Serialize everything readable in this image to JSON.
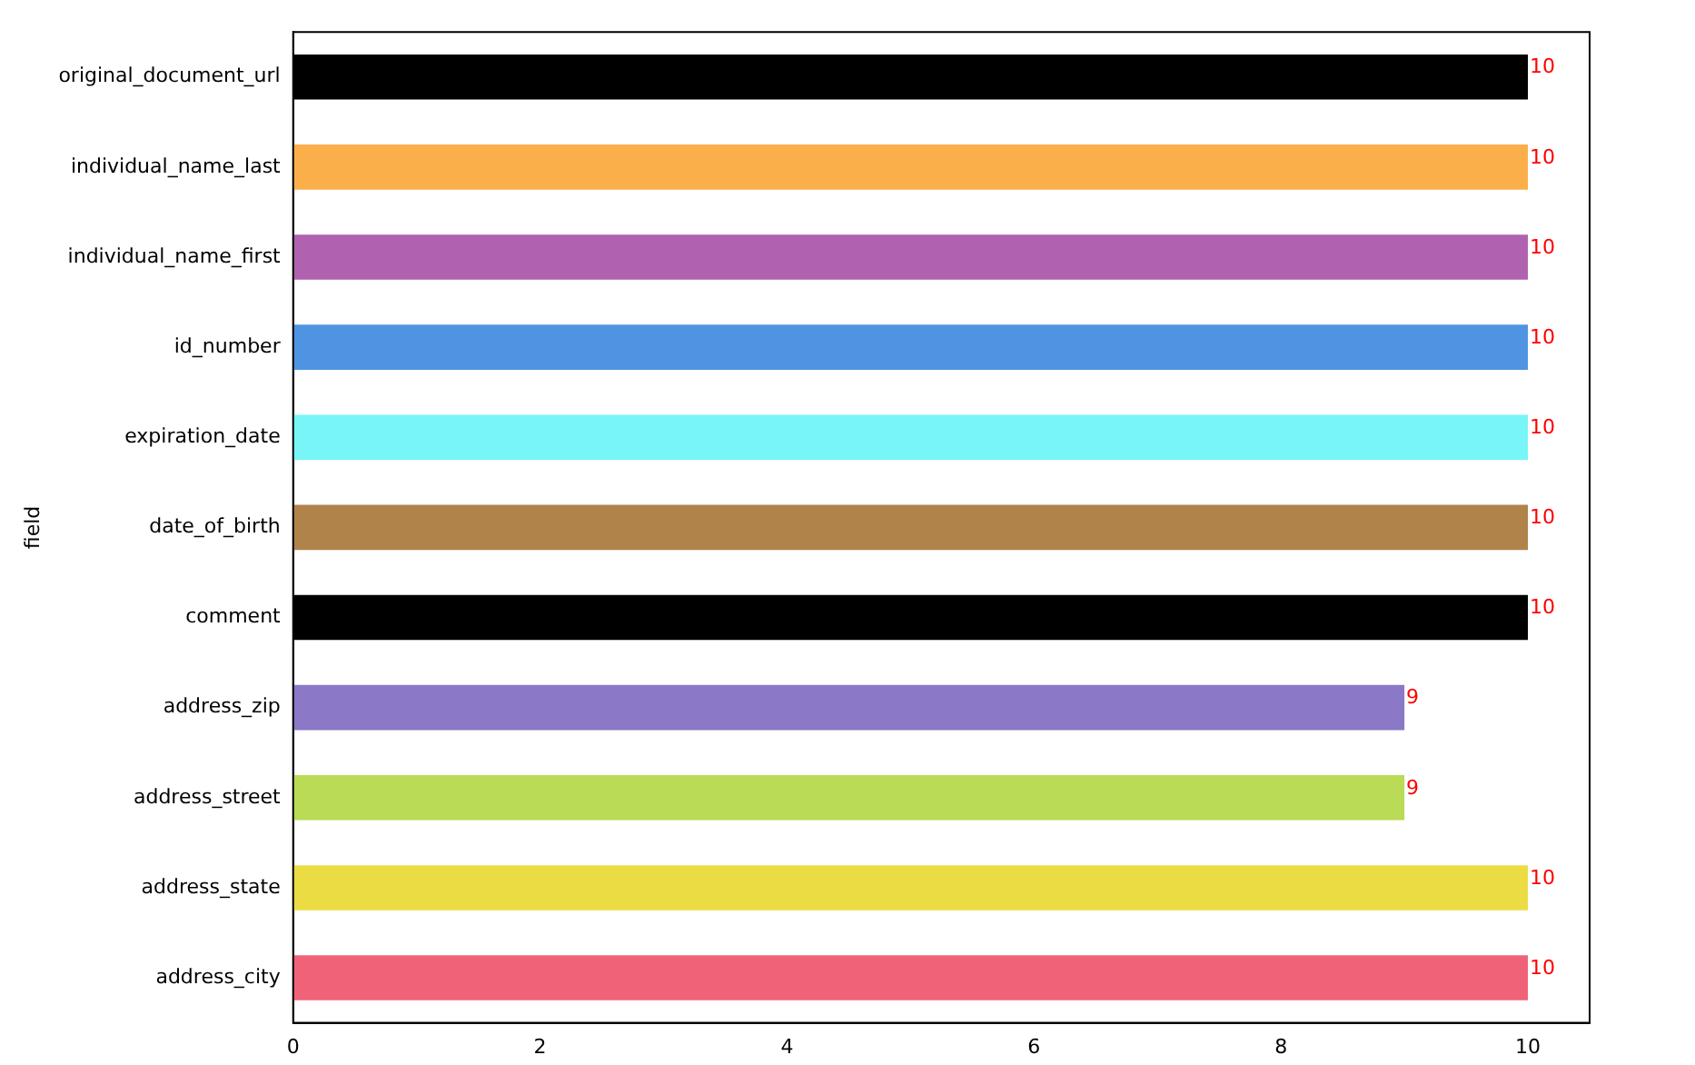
{
  "chart_data": {
    "type": "bar",
    "orientation": "horizontal",
    "ylabel": "field",
    "categories": [
      "original_document_url",
      "individual_name_last",
      "individual_name_first",
      "id_number",
      "expiration_date",
      "date_of_birth",
      "comment",
      "address_zip",
      "address_street",
      "address_state",
      "address_city"
    ],
    "values": [
      10,
      10,
      10,
      10,
      10,
      10,
      10,
      9,
      9,
      10,
      10
    ],
    "colors": [
      "#000000",
      "#faaf4b",
      "#b062b0",
      "#4f94e2",
      "#78f5f7",
      "#b0834a",
      "#000000",
      "#8b78c6",
      "#b9db55",
      "#ecdc44",
      "#f06278"
    ],
    "xlim": [
      0,
      10.5
    ],
    "xticks": [
      0,
      2,
      4,
      6,
      8,
      10
    ],
    "data_labels": true
  }
}
